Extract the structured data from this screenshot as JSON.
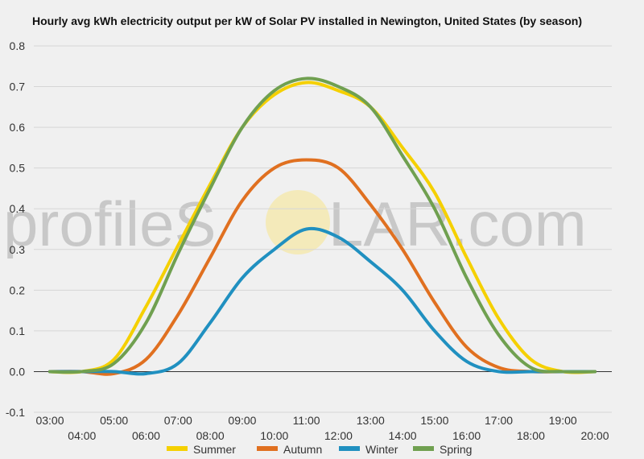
{
  "chart_data": {
    "type": "line",
    "title": "Hourly avg kWh electricity output per kW of Solar PV installed in Newington, United States (by season)",
    "xlabel": "",
    "ylabel": "",
    "x": [
      "03:00",
      "04:00",
      "05:00",
      "06:00",
      "07:00",
      "08:00",
      "09:00",
      "10:00",
      "11:00",
      "12:00",
      "13:00",
      "14:00",
      "15:00",
      "16:00",
      "17:00",
      "18:00",
      "19:00",
      "20:00"
    ],
    "ylim": [
      -0.1,
      0.8
    ],
    "yticks": [
      "-0.1",
      "0.0",
      "0.1",
      "0.2",
      "0.3",
      "0.4",
      "0.5",
      "0.6",
      "0.7",
      "0.8"
    ],
    "grid": true,
    "legend": "bottom",
    "series": [
      {
        "name": "Summer",
        "color": "#f5d000",
        "values": [
          0,
          0,
          0.03,
          0.16,
          0.31,
          0.46,
          0.6,
          0.68,
          0.71,
          0.69,
          0.65,
          0.55,
          0.44,
          0.28,
          0.13,
          0.03,
          0,
          0
        ]
      },
      {
        "name": "Autumn",
        "color": "#e07020",
        "values": [
          0,
          0,
          -0.005,
          0.03,
          0.14,
          0.28,
          0.42,
          0.5,
          0.52,
          0.5,
          0.41,
          0.3,
          0.17,
          0.06,
          0.01,
          0,
          0,
          0
        ]
      },
      {
        "name": "Winter",
        "color": "#2090c0",
        "values": [
          0,
          0,
          0,
          -0.005,
          0.02,
          0.12,
          0.23,
          0.3,
          0.35,
          0.33,
          0.27,
          0.2,
          0.1,
          0.025,
          0,
          0,
          0,
          0
        ]
      },
      {
        "name": "Spring",
        "color": "#70a050",
        "values": [
          0,
          0,
          0.02,
          0.12,
          0.29,
          0.45,
          0.6,
          0.69,
          0.72,
          0.7,
          0.65,
          0.53,
          0.4,
          0.23,
          0.09,
          0.01,
          0,
          0
        ]
      }
    ]
  },
  "watermark": {
    "text_before": "profileS",
    "text_after": "LAR.com"
  }
}
